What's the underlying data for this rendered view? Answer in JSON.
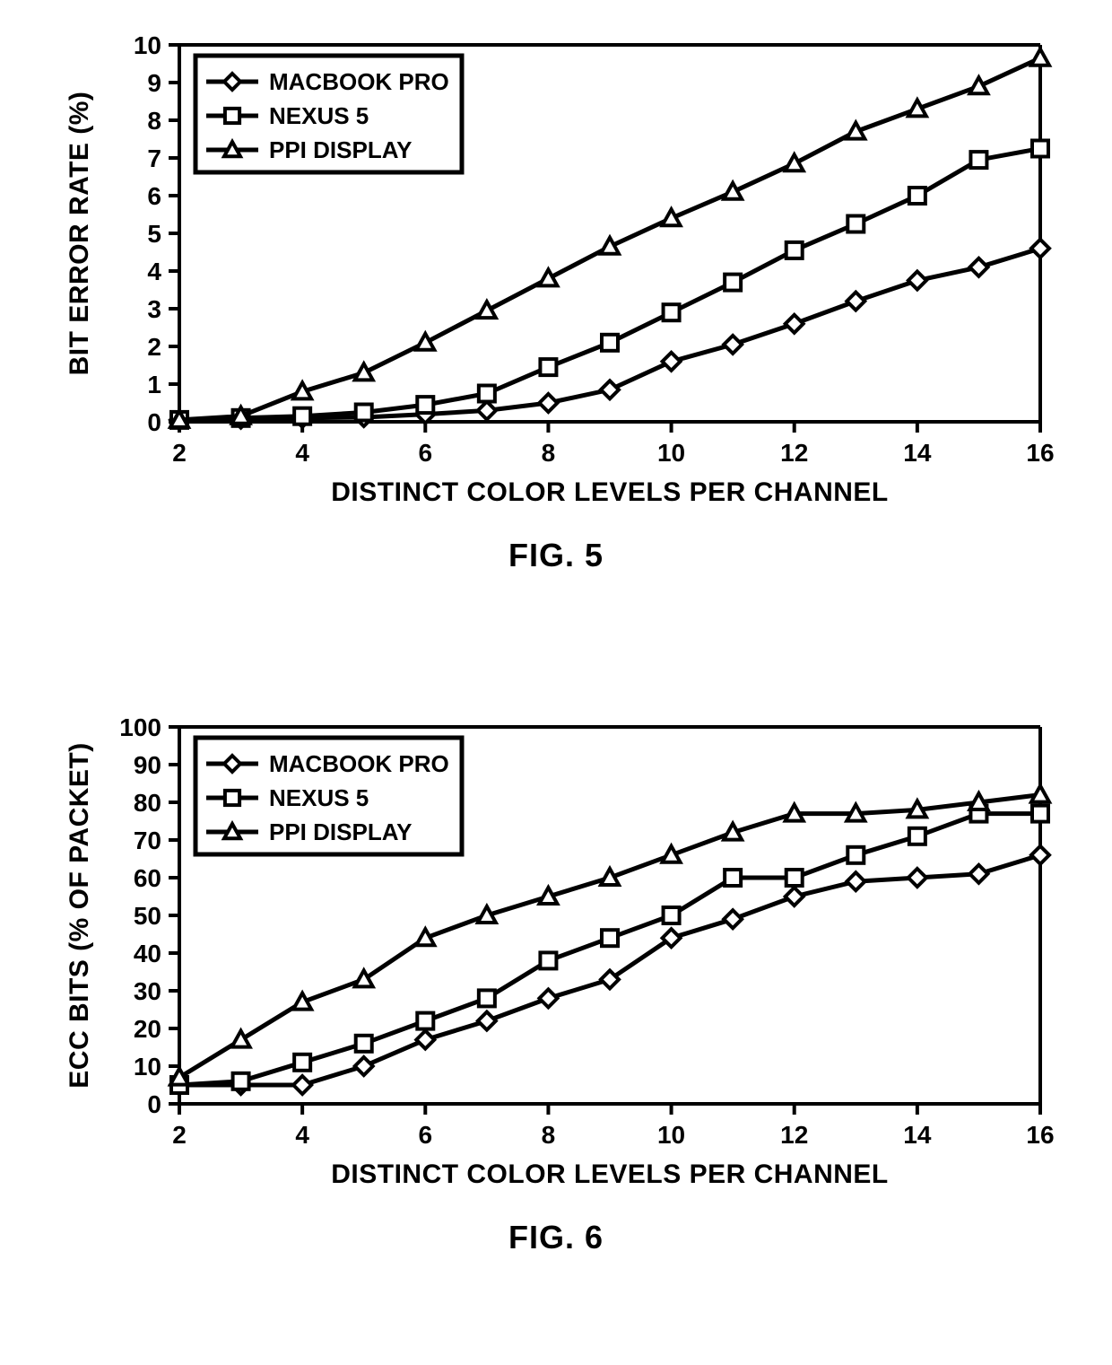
{
  "figure5": {
    "type": "line",
    "caption": "FIG. 5",
    "xlabel": "DISTINCT COLOR LEVELS PER CHANNEL",
    "ylabel": "BIT ERROR RATE (%)",
    "xlim": [
      2,
      16
    ],
    "ylim": [
      0,
      10
    ],
    "xtick_step": 2,
    "ytick_step": 1,
    "x_values": [
      2,
      3,
      4,
      5,
      6,
      7,
      8,
      9,
      10,
      11,
      12,
      13,
      14,
      15,
      16
    ],
    "line_color": "#000000",
    "line_width": 5,
    "marker_size": 20,
    "background_color": "#ffffff",
    "axis_color": "#000000",
    "axis_width": 4,
    "tick_fontsize": 28,
    "tick_fontweight": 900,
    "label_fontsize": 30,
    "label_fontweight": 900,
    "legend": {
      "position": "top-left",
      "border_color": "#000000",
      "border_width": 5,
      "fill_color": "#ffffff",
      "fontsize": 26,
      "fontweight": 900
    },
    "series": [
      {
        "name": "MACBOOK PRO",
        "marker": "diamond",
        "values": [
          0.05,
          0.08,
          0.1,
          0.12,
          0.2,
          0.3,
          0.5,
          0.85,
          1.6,
          2.05,
          2.6,
          3.2,
          3.75,
          4.1,
          4.6
        ]
      },
      {
        "name": "NEXUS 5",
        "marker": "square",
        "values": [
          0.05,
          0.1,
          0.15,
          0.25,
          0.45,
          0.75,
          1.45,
          2.1,
          2.9,
          3.7,
          4.55,
          5.25,
          6.0,
          6.95,
          7.25
        ]
      },
      {
        "name": "PPI DISPLAY",
        "marker": "triangle",
        "values": [
          0.05,
          0.15,
          0.8,
          1.3,
          2.1,
          2.95,
          3.8,
          4.65,
          5.4,
          6.1,
          6.85,
          7.7,
          8.3,
          8.9,
          9.65
        ]
      }
    ]
  },
  "figure6": {
    "type": "line",
    "caption": "FIG. 6",
    "xlabel": "DISTINCT COLOR LEVELS PER CHANNEL",
    "ylabel": "ECC BITS (% OF PACKET)",
    "xlim": [
      2,
      16
    ],
    "ylim": [
      0,
      100
    ],
    "xtick_step": 2,
    "ytick_step": 10,
    "x_values": [
      2,
      3,
      4,
      5,
      6,
      7,
      8,
      9,
      10,
      11,
      12,
      13,
      14,
      15,
      16
    ],
    "line_color": "#000000",
    "line_width": 5,
    "marker_size": 20,
    "background_color": "#ffffff",
    "axis_color": "#000000",
    "axis_width": 4,
    "tick_fontsize": 28,
    "tick_fontweight": 900,
    "label_fontsize": 30,
    "label_fontweight": 900,
    "legend": {
      "position": "top-left",
      "border_color": "#000000",
      "border_width": 5,
      "fill_color": "#ffffff",
      "fontsize": 26,
      "fontweight": 900
    },
    "series": [
      {
        "name": "MACBOOK PRO",
        "marker": "diamond",
        "values": [
          5,
          5,
          5,
          10,
          17,
          22,
          28,
          33,
          44,
          49,
          55,
          59,
          60,
          61,
          66
        ]
      },
      {
        "name": "NEXUS 5",
        "marker": "square",
        "values": [
          5,
          6,
          11,
          16,
          22,
          28,
          38,
          44,
          50,
          60,
          60,
          66,
          71,
          77,
          77
        ]
      },
      {
        "name": "PPI DISPLAY",
        "marker": "triangle",
        "values": [
          7,
          17,
          27,
          33,
          44,
          50,
          55,
          60,
          66,
          72,
          77,
          77,
          78,
          80,
          82
        ]
      }
    ]
  }
}
